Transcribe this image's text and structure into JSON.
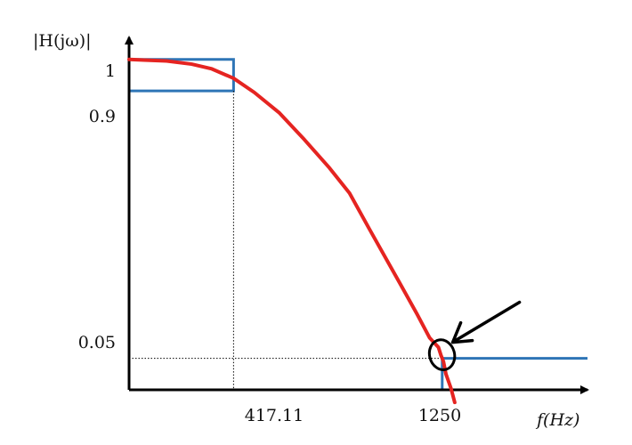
{
  "chart_data": {
    "type": "line",
    "title": "",
    "ylabel": "|H(jω)|",
    "xlabel": "f(Hz)",
    "x_ticks": [
      {
        "value": 417.11,
        "label": "417.11"
      },
      {
        "value": 1250,
        "label": "1250"
      }
    ],
    "y_ticks": [
      {
        "value": 1,
        "label": "1"
      },
      {
        "value": 0.9,
        "label": "0.9"
      },
      {
        "value": 0.05,
        "label": "0.05"
      }
    ],
    "xlim": [
      0,
      1830
    ],
    "ylim": [
      -0.05,
      1.07
    ],
    "grid": false,
    "series": [
      {
        "color": "#e52421",
        "x": [
          0,
          60,
          150,
          250,
          330,
          417,
          500,
          600,
          700,
          800,
          880,
          960,
          1020,
          1080,
          1150,
          1200,
          1235,
          1245,
          1255,
          1265,
          1285,
          1300
        ],
        "y": [
          1.0,
          0.998,
          0.995,
          0.985,
          0.97,
          0.94,
          0.895,
          0.83,
          0.745,
          0.655,
          0.575,
          0.46,
          0.375,
          0.29,
          0.19,
          0.115,
          0.085,
          0.06,
          0.04,
          0.0,
          -0.045,
          -0.09
        ]
      }
    ],
    "tolerance_mask": {
      "color": "#2e75b6",
      "passband": {
        "f_max": 417.11,
        "gain_min": 0.9,
        "gain_max": 1
      },
      "stopband": {
        "f_min": 1250,
        "gain_max": 0.05
      }
    },
    "annotations": [
      {
        "type": "circle",
        "at": {
          "x": 1260,
          "y": 0.05
        },
        "color": "#000000"
      },
      {
        "type": "arrow",
        "points_to": {
          "x": 1260,
          "y": 0.05
        },
        "color": "#000000"
      }
    ]
  }
}
